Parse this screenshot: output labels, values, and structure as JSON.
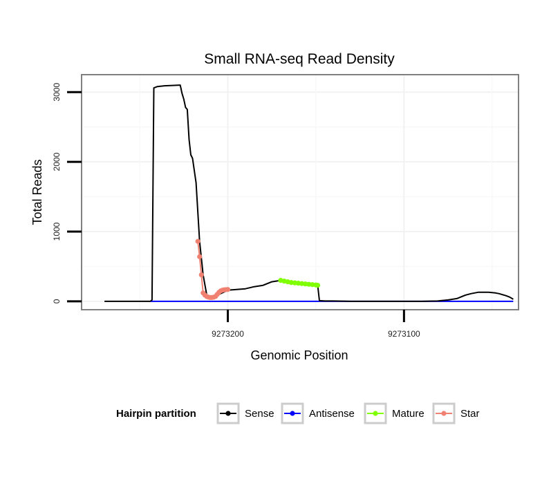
{
  "chart_data": {
    "type": "line",
    "title": "Small RNA-seq Read Density",
    "xlabel": "Genomic Position",
    "ylabel": "Total Reads",
    "x_reversed": true,
    "xlim": [
      9273283,
      9273035
    ],
    "ylim": [
      -120,
      3250
    ],
    "x_ticks": [
      9273200,
      9273100
    ],
    "x_tick_labels": [
      "9273200",
      "9273100"
    ],
    "y_ticks": [
      0,
      1000,
      2000,
      3000
    ],
    "y_tick_labels": [
      "0",
      "1000",
      "2000",
      "3000"
    ],
    "grid": true,
    "legend": {
      "title": "Hairpin partition",
      "position": "bottom",
      "entries": [
        {
          "label": "Sense",
          "color": "#000000"
        },
        {
          "label": "Antisense",
          "color": "#0000ff"
        },
        {
          "label": "Mature",
          "color": "#7fff00"
        },
        {
          "label": "Star",
          "color": "#f08070"
        }
      ]
    },
    "series": [
      {
        "name": "Sense",
        "color": "#000000",
        "x": [
          9273270,
          9273244,
          9273243,
          9273242,
          9273240,
          9273236,
          9273227,
          9273226,
          9273225,
          9273224,
          9273223,
          9273222,
          9273221,
          9273220,
          9273218,
          9273216,
          9273214,
          9273212,
          9273211,
          9273210,
          9273208,
          9273205,
          9273200,
          9273195,
          9273190,
          9273185,
          9273180,
          9273175,
          9273170,
          9273168,
          9273166,
          9273164,
          9273162,
          9273160,
          9273158,
          9273156,
          9273154,
          9273152,
          9273150,
          9273149,
          9273148,
          9273145,
          9273140,
          9273130,
          9273120,
          9273110,
          9273100,
          9273090,
          9273081,
          9273075,
          9273070,
          9273067,
          9273065,
          9273062,
          9273060,
          9273058,
          9273055,
          9273052,
          9273048,
          9273046,
          9273042,
          9273040,
          9273038
        ],
        "y": [
          0,
          0,
          20,
          3060,
          3080,
          3090,
          3100,
          2980,
          2900,
          2780,
          2750,
          2320,
          2100,
          2050,
          1700,
          860,
          380,
          100,
          60,
          50,
          60,
          100,
          160,
          170,
          180,
          210,
          230,
          280,
          300,
          290,
          280,
          270,
          265,
          260,
          255,
          250,
          245,
          240,
          235,
          230,
          10,
          5,
          5,
          0,
          0,
          0,
          0,
          0,
          5,
          20,
          40,
          70,
          90,
          110,
          120,
          130,
          130,
          130,
          120,
          110,
          80,
          60,
          30
        ]
      },
      {
        "name": "Antisense",
        "color": "#0000ff",
        "x": [
          9273244,
          9273038
        ],
        "y": [
          0,
          0
        ]
      },
      {
        "name": "Mature",
        "color": "#7fff00",
        "x": [
          9273170,
          9273168,
          9273166,
          9273164,
          9273162,
          9273160,
          9273158,
          9273156,
          9273154,
          9273152,
          9273150,
          9273149
        ],
        "y": [
          300,
          290,
          280,
          270,
          265,
          260,
          255,
          250,
          245,
          240,
          235,
          230
        ]
      },
      {
        "name": "Star",
        "color": "#f08070",
        "x": [
          9273217,
          9273216,
          9273215,
          9273214,
          9273213,
          9273212,
          9273211,
          9273210,
          9273209,
          9273208,
          9273207,
          9273206,
          9273205,
          9273204,
          9273203,
          9273202,
          9273201,
          9273200
        ],
        "y": [
          860,
          640,
          380,
          120,
          90,
          70,
          60,
          55,
          55,
          60,
          70,
          100,
          130,
          150,
          160,
          165,
          168,
          170
        ]
      }
    ]
  }
}
